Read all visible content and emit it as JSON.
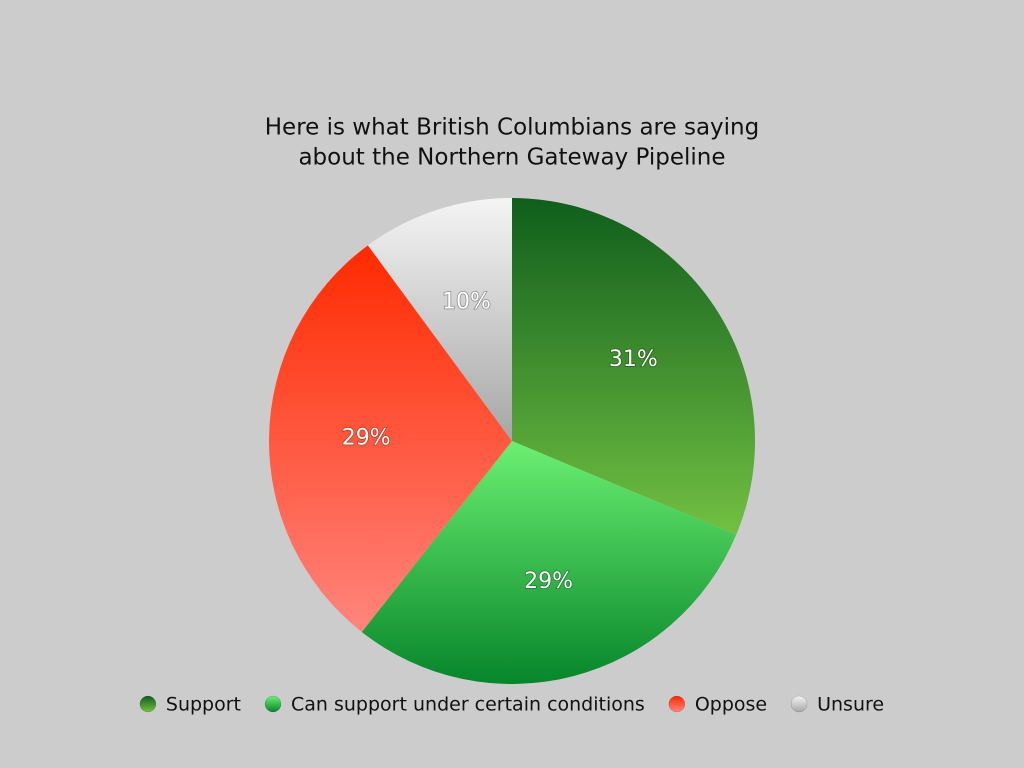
{
  "chart_data": {
    "type": "pie",
    "title": [
      "Here is what British Columbians are saying",
      "about the Northern Gateway Pipeline"
    ],
    "categories": [
      "Support",
      "Can support under certain conditions",
      "Oppose",
      "Unsure"
    ],
    "values": [
      31,
      29,
      29,
      10
    ],
    "value_labels": [
      "31%",
      "29%",
      "29%",
      "10%"
    ],
    "colors": [
      [
        "#0f5e1c",
        "#72c042"
      ],
      [
        "#6cf072",
        "#07852a"
      ],
      [
        "#ff2a00",
        "#ff857d"
      ],
      [
        "#f4f4f4",
        "#a6a6a6"
      ]
    ],
    "legend": "bottom"
  }
}
